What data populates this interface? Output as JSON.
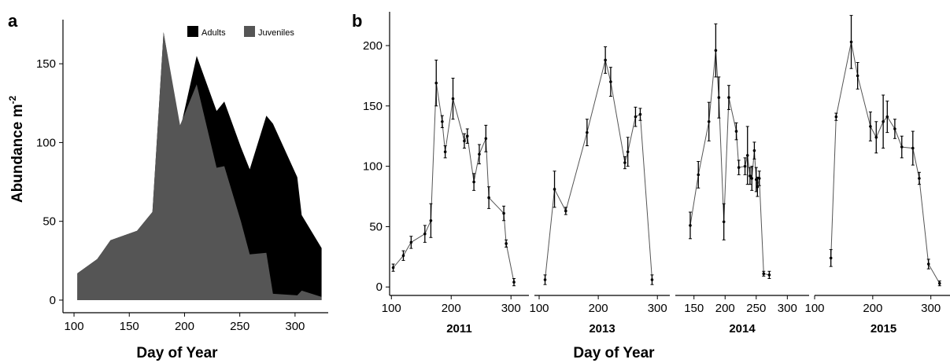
{
  "chart_data": [
    {
      "panel": "a",
      "type": "area",
      "title": "",
      "xlabel": "Day of Year",
      "ylabel": "Abundance m",
      "ylabel_superscript": "-2",
      "xlim": [
        90,
        330
      ],
      "ylim": [
        -8,
        178
      ],
      "xticks": [
        100,
        150,
        200,
        250,
        300
      ],
      "yticks": [
        0,
        50,
        100,
        150
      ],
      "stacked": true,
      "legend_position": "top-right",
      "series": [
        {
          "name": "Adults",
          "color": "#000000",
          "points": [
            [
              103,
              17
            ],
            [
              121,
              26
            ],
            [
              133,
              38
            ],
            [
              157,
              44
            ],
            [
              171,
              56
            ],
            [
              181,
              170
            ],
            [
              196,
              108
            ],
            [
              211,
              155
            ],
            [
              229,
              120
            ],
            [
              236,
              126
            ],
            [
              251,
              97
            ],
            [
              259,
              83
            ],
            [
              274,
              117
            ],
            [
              280,
              112
            ],
            [
              302,
              78
            ],
            [
              306,
              54
            ],
            [
              324,
              33
            ]
          ]
        },
        {
          "name": "Juveniles",
          "color": "#555555",
          "points": [
            [
              103,
              17
            ],
            [
              121,
              26
            ],
            [
              133,
              38
            ],
            [
              157,
              44
            ],
            [
              171,
              56
            ],
            [
              181,
              170
            ],
            [
              196,
              111
            ],
            [
              211,
              137
            ],
            [
              229,
              84
            ],
            [
              236,
              85
            ],
            [
              251,
              50
            ],
            [
              259,
              29
            ],
            [
              274,
              30
            ],
            [
              280,
              4
            ],
            [
              302,
              3
            ],
            [
              306,
              6
            ],
            [
              324,
              2
            ]
          ]
        }
      ]
    },
    {
      "panel": "b",
      "type": "line",
      "title": "",
      "xlabel": "Day of Year",
      "ylabel": "",
      "ylim": [
        -7,
        228
      ],
      "yticks": [
        0,
        50,
        100,
        150,
        200
      ],
      "error_bars": true,
      "facets": [
        {
          "name": "2011",
          "xlim": [
            97,
            330
          ],
          "xticks": [
            100,
            200,
            300
          ],
          "points": [
            [
              103,
              16,
              3
            ],
            [
              120,
              26,
              4
            ],
            [
              133,
              37,
              5
            ],
            [
              156,
              44,
              7
            ],
            [
              166,
              55,
              14
            ],
            [
              175,
              169,
              19
            ],
            [
              185,
              137,
              5
            ],
            [
              190,
              112,
              5
            ],
            [
              203,
              156,
              17
            ],
            [
              222,
              121,
              6
            ],
            [
              227,
              125,
              6
            ],
            [
              238,
              87,
              7
            ],
            [
              247,
              110,
              8
            ],
            [
              258,
              123,
              11
            ],
            [
              263,
              74,
              9
            ],
            [
              288,
              61,
              6
            ],
            [
              292,
              36,
              3
            ],
            [
              305,
              4,
              3
            ]
          ]
        },
        {
          "name": "2013",
          "xlim": [
            92,
            321
          ],
          "xticks": [
            100,
            200,
            300
          ],
          "points": [
            [
              110,
              6,
              4
            ],
            [
              126,
              81,
              15
            ],
            [
              145,
              63,
              3
            ],
            [
              181,
              128,
              11
            ],
            [
              212,
              188,
              11
            ],
            [
              221,
              170,
              12
            ],
            [
              245,
              103,
              5
            ],
            [
              250,
              112,
              12
            ],
            [
              263,
              141,
              8
            ],
            [
              271,
              143,
              5
            ],
            [
              291,
              6,
              4
            ]
          ]
        },
        {
          "name": "2014",
          "xlim": [
            120,
            335
          ],
          "xticks": [
            150,
            200,
            250,
            300
          ],
          "points": [
            [
              144,
              51,
              11
            ],
            [
              157,
              93,
              11
            ],
            [
              174,
              137,
              16
            ],
            [
              185,
              196,
              22
            ],
            [
              190,
              157,
              17
            ],
            [
              198,
              54,
              15
            ],
            [
              206,
              157,
              10
            ],
            [
              218,
              129,
              7
            ],
            [
              222,
              99,
              6
            ],
            [
              232,
              100,
              7
            ],
            [
              236,
              109,
              24
            ],
            [
              240,
              92,
              7
            ],
            [
              243,
              90,
              10
            ],
            [
              247,
              113,
              7
            ],
            [
              250,
              89,
              10
            ],
            [
              252,
              83,
              8
            ],
            [
              255,
              90,
              6
            ],
            [
              262,
              11,
              2
            ],
            [
              271,
              10,
              3
            ]
          ]
        },
        {
          "name": "2015",
          "xlim": [
            100,
            337
          ],
          "xticks": [
            100,
            200,
            300
          ],
          "points": [
            [
              128,
              24,
              7
            ],
            [
              137,
              141,
              3
            ],
            [
              163,
              203,
              22
            ],
            [
              174,
              175,
              11
            ],
            [
              196,
              133,
              12
            ],
            [
              206,
              124,
              13
            ],
            [
              218,
              137,
              22
            ],
            [
              225,
              141,
              13
            ],
            [
              238,
              131,
              8
            ],
            [
              250,
              116,
              9
            ],
            [
              269,
              115,
              14
            ],
            [
              280,
              90,
              5
            ],
            [
              296,
              19,
              4
            ],
            [
              315,
              3,
              2
            ]
          ]
        }
      ]
    }
  ],
  "labels": {
    "panel_a": "a",
    "panel_b": "b"
  }
}
